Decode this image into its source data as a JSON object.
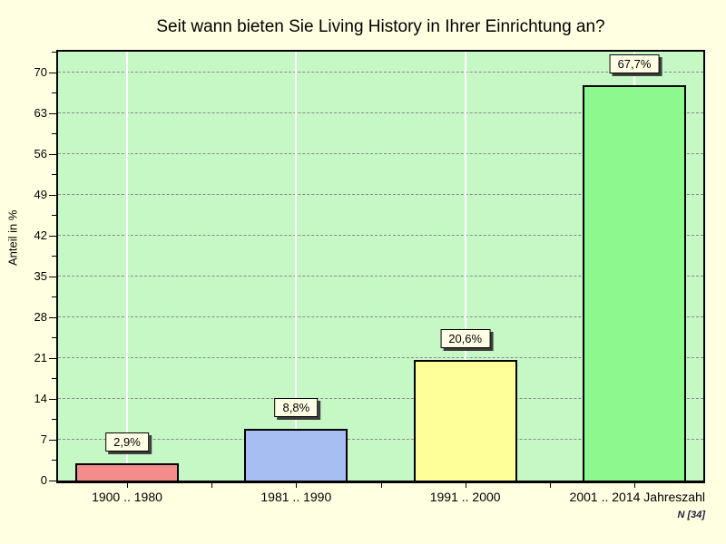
{
  "page": {
    "background": "#FFFFE1"
  },
  "chart_data": {
    "type": "bar",
    "title": "Seit wann bieten Sie Living History in Ihrer Einrichtung an?",
    "categories": [
      "1900 .. 1980",
      "1981 .. 1990",
      "1991 .. 2000",
      "2001 .. 2014"
    ],
    "values": [
      2.9,
      8.8,
      20.6,
      67.7
    ],
    "value_labels": [
      "2,9%",
      "8,8%",
      "20,6%",
      "67,7%"
    ],
    "bar_colors": [
      "#F48C8C",
      "#A6BEF2",
      "#FFFF99",
      "#8DF88D"
    ],
    "xlabel_suffix": "Jahreszahl",
    "ylabel": "Anteil in %",
    "ylim": [
      0,
      73.5
    ],
    "yticks": [
      0,
      7,
      14,
      21,
      28,
      35,
      42,
      49,
      56,
      63,
      70
    ],
    "minor_tick_step": 3.5,
    "grid": "horizontal-dashed",
    "legend": "none",
    "plot_bg": "#C6F8C6",
    "footnote": "N [34]"
  }
}
